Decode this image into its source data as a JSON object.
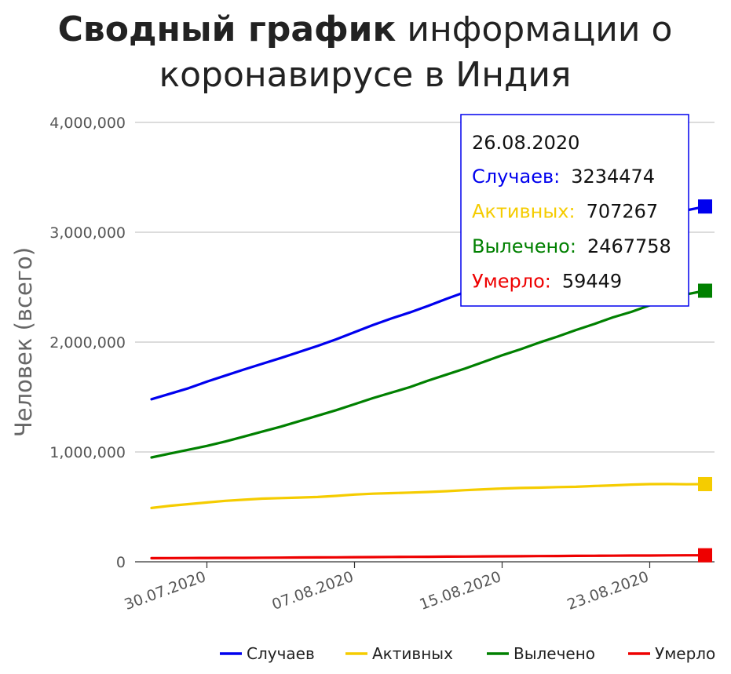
{
  "chart_data": {
    "type": "line",
    "title_bold": "Сводный график",
    "title_rest_line1": "информации о",
    "title_line2": "коронавирусе в Индия",
    "ylabel": "Человек (всего)",
    "ylim": [
      0,
      4000000
    ],
    "yticks": [
      0,
      1000000,
      2000000,
      3000000,
      4000000
    ],
    "ytick_labels": [
      "0",
      "1,000,000",
      "2,000,000",
      "3,000,000",
      "4,000,000"
    ],
    "x_start": "2020-07-27",
    "x_end": "2020-08-26",
    "xticks": [
      "2020-07-30",
      "2020-08-07",
      "2020-08-15",
      "2020-08-23"
    ],
    "xtick_labels": [
      "30.07.2020",
      "07.08.2020",
      "15.08.2020",
      "23.08.2020"
    ],
    "legend_position": "bottom-right",
    "x": [
      "2020-07-27",
      "2020-07-28",
      "2020-07-29",
      "2020-07-30",
      "2020-07-31",
      "2020-08-01",
      "2020-08-02",
      "2020-08-03",
      "2020-08-04",
      "2020-08-05",
      "2020-08-06",
      "2020-08-07",
      "2020-08-08",
      "2020-08-09",
      "2020-08-10",
      "2020-08-11",
      "2020-08-12",
      "2020-08-13",
      "2020-08-14",
      "2020-08-15",
      "2020-08-16",
      "2020-08-17",
      "2020-08-18",
      "2020-08-19",
      "2020-08-20",
      "2020-08-21",
      "2020-08-22",
      "2020-08-23",
      "2020-08-24",
      "2020-08-25",
      "2020-08-26"
    ],
    "series": [
      {
        "name": "Случаев",
        "color": "#0000ee",
        "values": [
          1480000,
          1530000,
          1580000,
          1640000,
          1695000,
          1750000,
          1803000,
          1855000,
          1910000,
          1965000,
          2025000,
          2090000,
          2155000,
          2215000,
          2270000,
          2330000,
          2395000,
          2455000,
          2525000,
          2590000,
          2650000,
          2710000,
          2770000,
          2840000,
          2905000,
          2975000,
          3045000,
          3105000,
          3165000,
          3200000,
          3234474
        ]
      },
      {
        "name": "Активных",
        "color": "#f5cc00",
        "values": [
          490000,
          510000,
          525000,
          540000,
          555000,
          565000,
          575000,
          580000,
          585000,
          590000,
          600000,
          612000,
          620000,
          625000,
          630000,
          636000,
          643000,
          652000,
          660000,
          667000,
          672000,
          675000,
          680000,
          683000,
          690000,
          696000,
          703000,
          707000,
          708000,
          706000,
          707267
        ]
      },
      {
        "name": "Вылечено",
        "color": "#008000",
        "values": [
          950000,
          985000,
          1020000,
          1055000,
          1095000,
          1140000,
          1185000,
          1230000,
          1280000,
          1330000,
          1380000,
          1435000,
          1490000,
          1540000,
          1590000,
          1650000,
          1705000,
          1760000,
          1820000,
          1880000,
          1935000,
          1995000,
          2050000,
          2110000,
          2165000,
          2225000,
          2275000,
          2335000,
          2390000,
          2435000,
          2467758
        ]
      },
      {
        "name": "Умерло",
        "color": "#ee0000",
        "values": [
          33000,
          33500,
          34000,
          35000,
          35500,
          36000,
          37000,
          38000,
          39000,
          40000,
          41000,
          42000,
          43000,
          44000,
          45000,
          46000,
          47000,
          48000,
          49000,
          50000,
          51000,
          52000,
          53000,
          54000,
          55000,
          56000,
          57000,
          57500,
          58500,
          59000,
          59449
        ]
      }
    ],
    "tooltip": {
      "date": "26.08.2020",
      "rows": [
        {
          "label": "Случаев:",
          "value": "3234474",
          "color": "#0000ee"
        },
        {
          "label": "Активных:",
          "value": "707267",
          "color": "#f5cc00"
        },
        {
          "label": "Вылечено:",
          "value": "2467758",
          "color": "#008000"
        },
        {
          "label": "Умерло:",
          "value": "59449",
          "color": "#ee0000"
        }
      ]
    }
  }
}
